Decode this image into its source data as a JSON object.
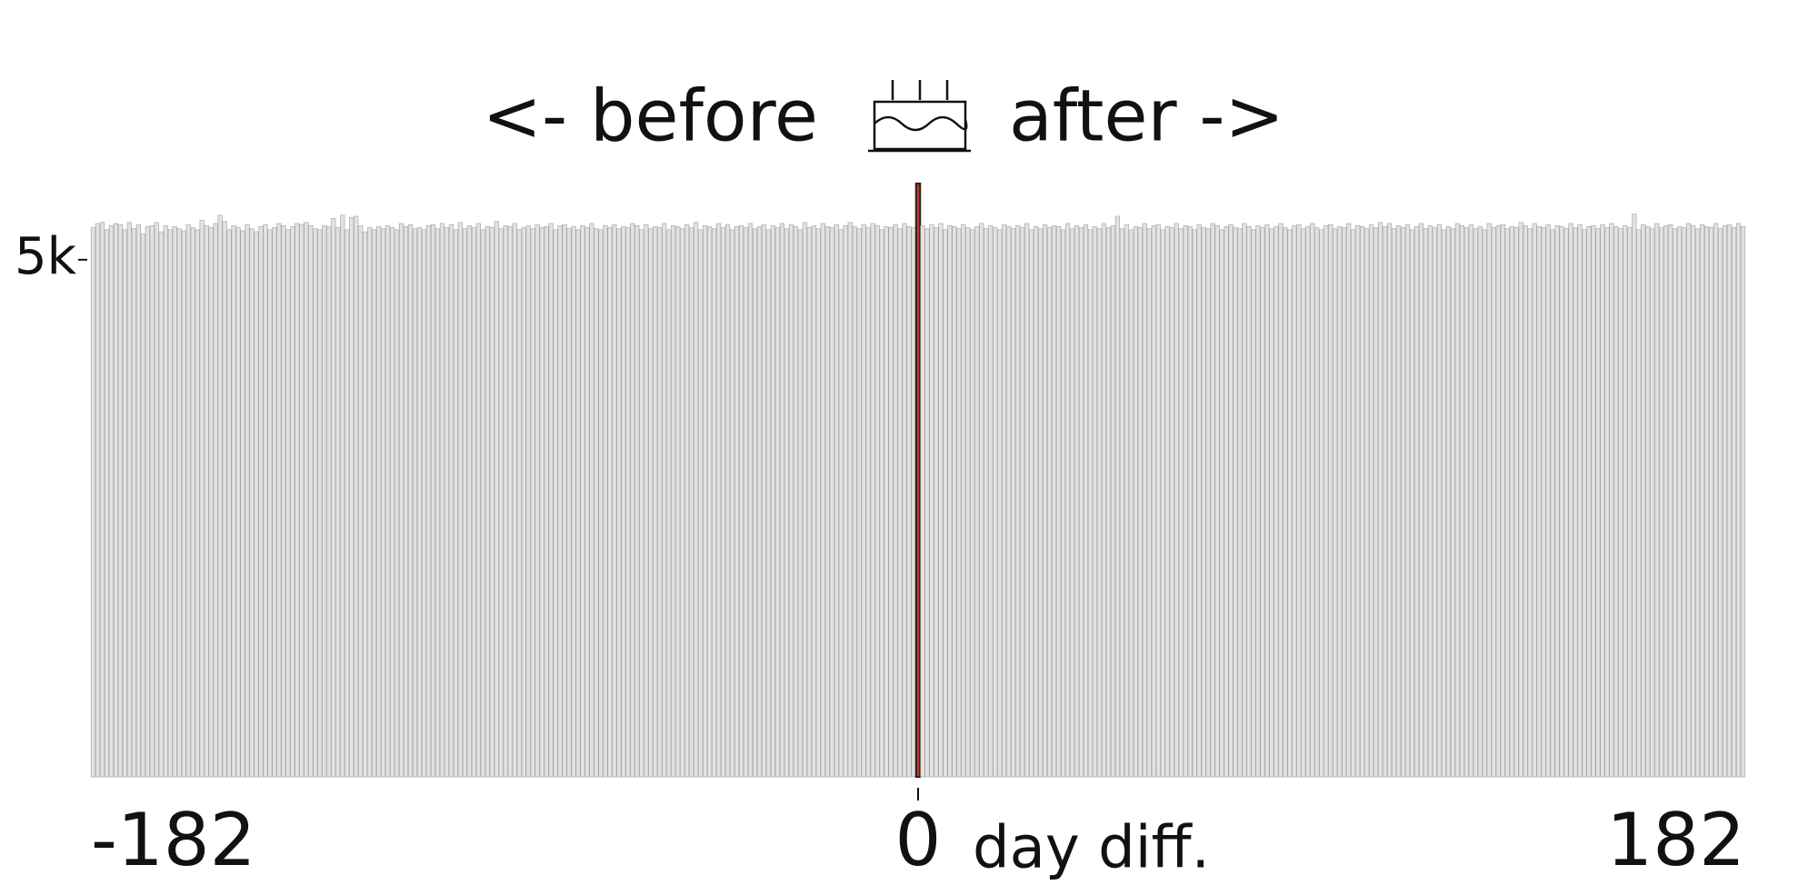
{
  "chart_data": {
    "type": "bar",
    "title_left": "<- before",
    "title_right": "after ->",
    "xlabel": "day diff.",
    "x": [
      -182,
      -181,
      -180,
      -179,
      -178,
      -177,
      -176,
      -175,
      -174,
      -173,
      -172,
      -171,
      -170,
      -169,
      -168,
      -167,
      -166,
      -165,
      -164,
      -163,
      -162,
      -161,
      -160,
      -159,
      -158,
      -157,
      -156,
      -155,
      -154,
      -153,
      -152,
      -151,
      -150,
      -149,
      -148,
      -147,
      -146,
      -145,
      -144,
      -143,
      -142,
      -141,
      -140,
      -139,
      -138,
      -137,
      -136,
      -135,
      -134,
      -133,
      -132,
      -131,
      -130,
      -129,
      -128,
      -127,
      -126,
      -125,
      -124,
      -123,
      -122,
      -121,
      -120,
      -119,
      -118,
      -117,
      -116,
      -115,
      -114,
      -113,
      -112,
      -111,
      -110,
      -109,
      -108,
      -107,
      -106,
      -105,
      -104,
      -103,
      -102,
      -101,
      -100,
      -99,
      -98,
      -97,
      -96,
      -95,
      -94,
      -93,
      -92,
      -91,
      -90,
      -89,
      -88,
      -87,
      -86,
      -85,
      -84,
      -83,
      -82,
      -81,
      -80,
      -79,
      -78,
      -77,
      -76,
      -75,
      -74,
      -73,
      -72,
      -71,
      -70,
      -69,
      -68,
      -67,
      -66,
      -65,
      -64,
      -63,
      -62,
      -61,
      -60,
      -59,
      -58,
      -57,
      -56,
      -55,
      -54,
      -53,
      -52,
      -51,
      -50,
      -49,
      -48,
      -47,
      -46,
      -45,
      -44,
      -43,
      -42,
      -41,
      -40,
      -39,
      -38,
      -37,
      -36,
      -35,
      -34,
      -33,
      -32,
      -31,
      -30,
      -29,
      -28,
      -27,
      -26,
      -25,
      -24,
      -23,
      -22,
      -21,
      -20,
      -19,
      -18,
      -17,
      -16,
      -15,
      -14,
      -13,
      -12,
      -11,
      -10,
      -9,
      -8,
      -7,
      -6,
      -5,
      -4,
      -3,
      -2,
      -1,
      0,
      1,
      2,
      3,
      4,
      5,
      6,
      7,
      8,
      9,
      10,
      11,
      12,
      13,
      14,
      15,
      16,
      17,
      18,
      19,
      20,
      21,
      22,
      23,
      24,
      25,
      26,
      27,
      28,
      29,
      30,
      31,
      32,
      33,
      34,
      35,
      36,
      37,
      38,
      39,
      40,
      41,
      42,
      43,
      44,
      45,
      46,
      47,
      48,
      49,
      50,
      51,
      52,
      53,
      54,
      55,
      56,
      57,
      58,
      59,
      60,
      61,
      62,
      63,
      64,
      65,
      66,
      67,
      68,
      69,
      70,
      71,
      72,
      73,
      74,
      75,
      76,
      77,
      78,
      79,
      80,
      81,
      82,
      83,
      84,
      85,
      86,
      87,
      88,
      89,
      90,
      91,
      92,
      93,
      94,
      95,
      96,
      97,
      98,
      99,
      100,
      101,
      102,
      103,
      104,
      105,
      106,
      107,
      108,
      109,
      110,
      111,
      112,
      113,
      114,
      115,
      116,
      117,
      118,
      119,
      120,
      121,
      122,
      123,
      124,
      125,
      126,
      127,
      128,
      129,
      130,
      131,
      132,
      133,
      134,
      135,
      136,
      137,
      138,
      139,
      140,
      141,
      142,
      143,
      144,
      145,
      146,
      147,
      148,
      149,
      150,
      151,
      152,
      153,
      154,
      155,
      156,
      157,
      158,
      159,
      160,
      161,
      162,
      163,
      164,
      165,
      166,
      167,
      168,
      169,
      170,
      171,
      172,
      173,
      174,
      175,
      176,
      177,
      178,
      179,
      180,
      181,
      182
    ],
    "values": [
      5310,
      5350,
      5360,
      5290,
      5330,
      5350,
      5340,
      5290,
      5360,
      5300,
      5340,
      5250,
      5320,
      5330,
      5360,
      5270,
      5330,
      5290,
      5320,
      5300,
      5280,
      5340,
      5310,
      5290,
      5380,
      5330,
      5310,
      5350,
      5430,
      5370,
      5290,
      5330,
      5310,
      5280,
      5340,
      5300,
      5270,
      5320,
      5340,
      5290,
      5310,
      5350,
      5330,
      5290,
      5320,
      5350,
      5340,
      5360,
      5330,
      5300,
      5290,
      5330,
      5320,
      5400,
      5310,
      5430,
      5290,
      5410,
      5420,
      5330,
      5270,
      5310,
      5290,
      5320,
      5300,
      5330,
      5310,
      5290,
      5350,
      5320,
      5340,
      5300,
      5310,
      5290,
      5330,
      5340,
      5300,
      5350,
      5310,
      5340,
      5290,
      5360,
      5300,
      5330,
      5310,
      5350,
      5290,
      5320,
      5310,
      5370,
      5300,
      5330,
      5320,
      5350,
      5290,
      5310,
      5330,
      5300,
      5340,
      5310,
      5320,
      5350,
      5290,
      5330,
      5340,
      5300,
      5320,
      5290,
      5330,
      5310,
      5350,
      5300,
      5290,
      5330,
      5310,
      5340,
      5300,
      5320,
      5310,
      5350,
      5330,
      5290,
      5340,
      5300,
      5320,
      5310,
      5350,
      5290,
      5330,
      5320,
      5300,
      5340,
      5310,
      5360,
      5290,
      5330,
      5320,
      5300,
      5350,
      5310,
      5340,
      5290,
      5320,
      5330,
      5310,
      5350,
      5300,
      5320,
      5340,
      5290,
      5330,
      5310,
      5350,
      5300,
      5340,
      5320,
      5290,
      5360,
      5310,
      5330,
      5300,
      5350,
      5320,
      5310,
      5340,
      5290,
      5330,
      5360,
      5320,
      5300,
      5340,
      5310,
      5350,
      5330,
      5290,
      5320,
      5310,
      5340,
      5300,
      5350,
      5320,
      5310,
      5737,
      5330,
      5300,
      5340,
      5310,
      5350,
      5290,
      5330,
      5320,
      5300,
      5340,
      5310,
      5290,
      5320,
      5350,
      5300,
      5330,
      5310,
      5290,
      5340,
      5320,
      5300,
      5330,
      5310,
      5350,
      5290,
      5320,
      5300,
      5340,
      5310,
      5330,
      5320,
      5290,
      5350,
      5300,
      5330,
      5310,
      5340,
      5290,
      5320,
      5300,
      5350,
      5310,
      5330,
      5420,
      5300,
      5340,
      5290,
      5320,
      5310,
      5350,
      5300,
      5330,
      5340,
      5290,
      5320,
      5310,
      5350,
      5300,
      5330,
      5320,
      5290,
      5340,
      5310,
      5300,
      5350,
      5330,
      5290,
      5320,
      5340,
      5310,
      5300,
      5350,
      5320,
      5290,
      5330,
      5310,
      5340,
      5300,
      5320,
      5350,
      5310,
      5290,
      5330,
      5340,
      5300,
      5320,
      5350,
      5310,
      5290,
      5330,
      5340,
      5300,
      5320,
      5310,
      5350,
      5290,
      5330,
      5320,
      5300,
      5340,
      5310,
      5360,
      5320,
      5350,
      5300,
      5330,
      5310,
      5340,
      5290,
      5320,
      5350,
      5300,
      5330,
      5310,
      5340,
      5290,
      5320,
      5300,
      5350,
      5330,
      5310,
      5340,
      5300,
      5320,
      5290,
      5350,
      5310,
      5330,
      5340,
      5300,
      5320,
      5310,
      5360,
      5330,
      5300,
      5350,
      5320,
      5310,
      5340,
      5290,
      5330,
      5320,
      5300,
      5350,
      5310,
      5340,
      5290,
      5320,
      5330,
      5300,
      5340,
      5310,
      5350,
      5320,
      5300,
      5330,
      5310,
      5440,
      5290,
      5340,
      5320,
      5300,
      5350,
      5310,
      5330,
      5340,
      5300,
      5320,
      5310,
      5350,
      5330,
      5300,
      5340,
      5320,
      5310,
      5350,
      5300,
      5330,
      5340,
      5310,
      5350,
      5320
    ],
    "color": "#e2e2e2",
    "highlight_x": 0,
    "highlight_color": "#c0392b",
    "xlim": [
      -182.5,
      182.5
    ],
    "xticks": [
      -182,
      0,
      182
    ],
    "ylim": [
      0,
      6000
    ],
    "yticks": [
      {
        "value": 5000,
        "label": "5k"
      }
    ]
  }
}
